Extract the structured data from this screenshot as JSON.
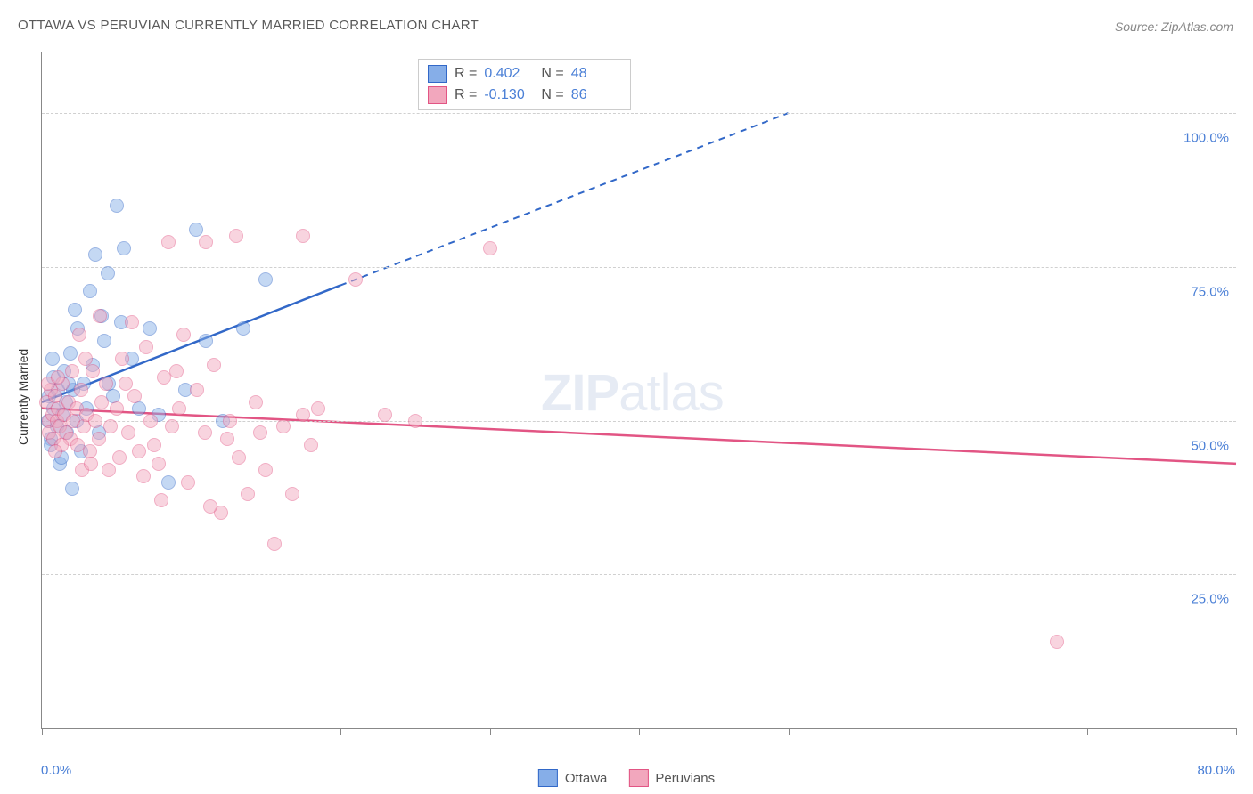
{
  "title": "OTTAWA VS PERUVIAN CURRENTLY MARRIED CORRELATION CHART",
  "source": "Source: ZipAtlas.com",
  "watermark_bold": "ZIP",
  "watermark_light": "atlas",
  "chart": {
    "type": "scatter",
    "ylabel": "Currently Married",
    "background_color": "#ffffff",
    "grid_color": "#d0d0d0",
    "grid_dash": "4,4",
    "axis_color": "#888888",
    "tick_label_color": "#4a7fd6",
    "ylabel_fontsize": 14,
    "tick_fontsize": 15,
    "xlim": [
      0,
      80
    ],
    "ylim": [
      0,
      110
    ],
    "y_gridlines": [
      25,
      50,
      75,
      100
    ],
    "y_ticklabels": [
      "25.0%",
      "50.0%",
      "75.0%",
      "100.0%"
    ],
    "x_ticks": [
      0,
      10,
      20,
      30,
      40,
      50,
      60,
      70,
      80
    ],
    "x_ticklabels": {
      "0": "0.0%",
      "80": "80.0%"
    },
    "marker_radius": 7,
    "marker_opacity": 0.48,
    "marker_border_opacity": 0.85,
    "series": [
      {
        "name": "Ottawa",
        "color_fill": "#86aee8",
        "color_border": "#3268c8",
        "R": "0.402",
        "N": "48",
        "trend": {
          "solid": {
            "x1": 0,
            "y1": 53,
            "x2": 20,
            "y2": 72
          },
          "dashed": {
            "x1": 20,
            "y1": 72,
            "x2": 50,
            "y2": 100
          }
        },
        "points": [
          [
            0.4,
            50
          ],
          [
            0.5,
            54
          ],
          [
            0.6,
            47
          ],
          [
            0.8,
            52
          ],
          [
            0.8,
            57
          ],
          [
            1,
            49
          ],
          [
            1.1,
            55
          ],
          [
            1.2,
            43
          ],
          [
            1.4,
            51
          ],
          [
            1.5,
            58
          ],
          [
            1.6,
            53
          ],
          [
            1.7,
            48
          ],
          [
            1.9,
            61
          ],
          [
            2.1,
            55
          ],
          [
            2.3,
            50
          ],
          [
            2.4,
            65
          ],
          [
            2.6,
            45
          ],
          [
            2.8,
            56
          ],
          [
            3.0,
            52
          ],
          [
            3.4,
            59
          ],
          [
            3.6,
            77
          ],
          [
            3.8,
            48
          ],
          [
            4.2,
            63
          ],
          [
            4.4,
            74
          ],
          [
            4.5,
            56
          ],
          [
            4.8,
            54
          ],
          [
            5.0,
            85
          ],
          [
            5.3,
            66
          ],
          [
            6.0,
            60
          ],
          [
            6.5,
            52
          ],
          [
            7.2,
            65
          ],
          [
            7.8,
            51
          ],
          [
            8.5,
            40
          ],
          [
            9.6,
            55
          ],
          [
            10.3,
            81
          ],
          [
            11.0,
            63
          ],
          [
            12.1,
            50
          ],
          [
            13.5,
            65
          ],
          [
            15.0,
            73
          ],
          [
            2.0,
            39
          ],
          [
            5.5,
            78
          ],
          [
            2.2,
            68
          ],
          [
            3.2,
            71
          ],
          [
            0.7,
            60
          ],
          [
            0.6,
            46
          ],
          [
            1.3,
            44
          ],
          [
            1.8,
            56
          ],
          [
            4.0,
            67
          ]
        ]
      },
      {
        "name": "Peruvians",
        "color_fill": "#f2a7bd",
        "color_border": "#e25584",
        "R": "-0.130",
        "N": "86",
        "trend": {
          "solid": {
            "x1": 0,
            "y1": 52,
            "x2": 80,
            "y2": 43
          },
          "dashed": null
        },
        "points": [
          [
            0.3,
            53
          ],
          [
            0.5,
            50
          ],
          [
            0.5,
            48
          ],
          [
            0.6,
            55
          ],
          [
            0.7,
            51
          ],
          [
            0.8,
            47
          ],
          [
            0.9,
            54
          ],
          [
            1.0,
            50
          ],
          [
            1.1,
            52
          ],
          [
            1.2,
            49
          ],
          [
            1.4,
            56
          ],
          [
            1.5,
            51
          ],
          [
            1.6,
            48
          ],
          [
            1.8,
            53
          ],
          [
            1.9,
            47
          ],
          [
            2.0,
            58
          ],
          [
            2.1,
            50
          ],
          [
            2.3,
            52
          ],
          [
            2.4,
            46
          ],
          [
            2.6,
            55
          ],
          [
            2.8,
            49
          ],
          [
            3.0,
            51
          ],
          [
            3.2,
            45
          ],
          [
            3.4,
            58
          ],
          [
            3.6,
            50
          ],
          [
            3.8,
            47
          ],
          [
            4.0,
            53
          ],
          [
            4.3,
            56
          ],
          [
            4.6,
            49
          ],
          [
            5.0,
            52
          ],
          [
            5.4,
            60
          ],
          [
            5.8,
            48
          ],
          [
            6.2,
            54
          ],
          [
            6.5,
            45
          ],
          [
            7.0,
            62
          ],
          [
            7.3,
            50
          ],
          [
            7.8,
            43
          ],
          [
            8.2,
            57
          ],
          [
            8.7,
            49
          ],
          [
            9.2,
            52
          ],
          [
            9.8,
            40
          ],
          [
            10.4,
            55
          ],
          [
            10.9,
            48
          ],
          [
            11.5,
            59
          ],
          [
            12.0,
            35
          ],
          [
            12.6,
            50
          ],
          [
            13.2,
            44
          ],
          [
            13.8,
            38
          ],
          [
            14.3,
            53
          ],
          [
            15.0,
            42
          ],
          [
            15.6,
            30
          ],
          [
            16.2,
            49
          ],
          [
            16.8,
            38
          ],
          [
            17.5,
            51
          ],
          [
            18.0,
            46
          ],
          [
            2.5,
            64
          ],
          [
            3.9,
            67
          ],
          [
            6.0,
            66
          ],
          [
            8.5,
            79
          ],
          [
            9.5,
            64
          ],
          [
            11.0,
            79
          ],
          [
            13.0,
            80
          ],
          [
            17.5,
            80
          ],
          [
            21.0,
            73
          ],
          [
            23.0,
            51
          ],
          [
            25.0,
            50
          ],
          [
            30.0,
            78
          ],
          [
            8.0,
            37
          ],
          [
            11.3,
            36
          ],
          [
            5.2,
            44
          ],
          [
            6.8,
            41
          ],
          [
            4.5,
            42
          ],
          [
            14.6,
            48
          ],
          [
            1.3,
            46
          ],
          [
            0.9,
            45
          ],
          [
            2.7,
            42
          ],
          [
            3.3,
            43
          ],
          [
            7.5,
            46
          ],
          [
            12.4,
            47
          ],
          [
            18.5,
            52
          ],
          [
            68.0,
            14
          ],
          [
            0.4,
            56
          ],
          [
            1.1,
            57
          ],
          [
            2.9,
            60
          ],
          [
            5.6,
            56
          ],
          [
            9.0,
            58
          ]
        ]
      }
    ]
  },
  "legend_top": {
    "R_label": "R =",
    "N_label": "N ="
  },
  "legend_bottom": [
    {
      "label": "Ottawa"
    },
    {
      "label": "Peruvians"
    }
  ]
}
